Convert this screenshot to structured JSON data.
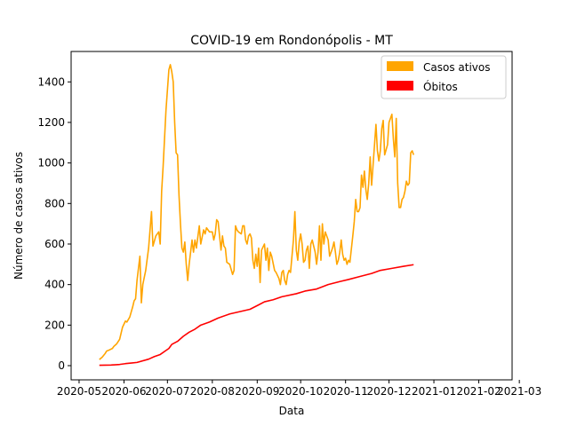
{
  "chart_data": {
    "type": "line",
    "title": "COVID-19 em Rondonópolis - MT",
    "xlabel": "Data",
    "ylabel": "Número de casos ativos",
    "x_ticks": [
      "2020-05",
      "2020-06",
      "2020-07",
      "2020-08",
      "2020-09",
      "2020-10",
      "2020-11",
      "2020-12",
      "2021-01",
      "2021-02",
      "2021-03"
    ],
    "y_ticks": [
      "0",
      "200",
      "400",
      "600",
      "800",
      "1000",
      "1200",
      "1400"
    ],
    "ylim": [
      -70,
      1550
    ],
    "xlim_days": [
      -5.5,
      299
    ],
    "legend": {
      "position": "top-right",
      "entries": [
        {
          "label": "Casos ativos",
          "color": "#ffa500"
        },
        {
          "label": "Óbitos",
          "color": "#ff0000"
        }
      ]
    },
    "x_start_date": "2020-05-01",
    "series": [
      {
        "name": "Casos ativos",
        "color": "#ffa500",
        "points": [
          [
            14,
            30
          ],
          [
            16,
            42
          ],
          [
            18,
            60
          ],
          [
            19,
            72
          ],
          [
            21,
            78
          ],
          [
            23,
            85
          ],
          [
            24,
            95
          ],
          [
            26,
            108
          ],
          [
            28,
            130
          ],
          [
            30,
            190
          ],
          [
            32,
            220
          ],
          [
            33,
            215
          ],
          [
            35,
            240
          ],
          [
            37,
            290
          ],
          [
            38,
            320
          ],
          [
            39,
            330
          ],
          [
            40,
            420
          ],
          [
            42,
            540
          ],
          [
            43,
            310
          ],
          [
            44,
            400
          ],
          [
            46,
            470
          ],
          [
            48,
            580
          ],
          [
            50,
            760
          ],
          [
            51,
            590
          ],
          [
            53,
            640
          ],
          [
            55,
            660
          ],
          [
            56,
            600
          ],
          [
            57,
            860
          ],
          [
            58,
            980
          ],
          [
            60,
            1260
          ],
          [
            62,
            1460
          ],
          [
            63,
            1485
          ],
          [
            64,
            1450
          ],
          [
            65,
            1400
          ],
          [
            66,
            1200
          ],
          [
            67,
            1050
          ],
          [
            68,
            1040
          ],
          [
            69,
            840
          ],
          [
            70,
            700
          ],
          [
            71,
            580
          ],
          [
            72,
            560
          ],
          [
            73,
            610
          ],
          [
            74,
            500
          ],
          [
            75,
            420
          ],
          [
            76,
            500
          ],
          [
            78,
            620
          ],
          [
            79,
            560
          ],
          [
            80,
            620
          ],
          [
            81,
            580
          ],
          [
            83,
            690
          ],
          [
            84,
            600
          ],
          [
            86,
            670
          ],
          [
            87,
            650
          ],
          [
            88,
            680
          ],
          [
            90,
            660
          ],
          [
            92,
            660
          ],
          [
            93,
            620
          ],
          [
            94,
            650
          ],
          [
            95,
            720
          ],
          [
            96,
            710
          ],
          [
            98,
            570
          ],
          [
            99,
            640
          ],
          [
            100,
            590
          ],
          [
            101,
            580
          ],
          [
            102,
            510
          ],
          [
            104,
            500
          ],
          [
            106,
            450
          ],
          [
            107,
            470
          ],
          [
            108,
            690
          ],
          [
            109,
            670
          ],
          [
            110,
            660
          ],
          [
            112,
            650
          ],
          [
            113,
            690
          ],
          [
            114,
            690
          ],
          [
            115,
            620
          ],
          [
            116,
            600
          ],
          [
            117,
            640
          ],
          [
            118,
            650
          ],
          [
            119,
            630
          ],
          [
            120,
            520
          ],
          [
            121,
            480
          ],
          [
            122,
            550
          ],
          [
            123,
            490
          ],
          [
            124,
            580
          ],
          [
            125,
            410
          ],
          [
            126,
            570
          ],
          [
            128,
            600
          ],
          [
            129,
            520
          ],
          [
            130,
            580
          ],
          [
            131,
            470
          ],
          [
            132,
            560
          ],
          [
            133,
            540
          ],
          [
            135,
            470
          ],
          [
            136,
            460
          ],
          [
            138,
            430
          ],
          [
            139,
            400
          ],
          [
            140,
            460
          ],
          [
            141,
            470
          ],
          [
            142,
            420
          ],
          [
            143,
            400
          ],
          [
            144,
            450
          ],
          [
            145,
            470
          ],
          [
            146,
            460
          ],
          [
            148,
            620
          ],
          [
            149,
            760
          ],
          [
            150,
            570
          ],
          [
            151,
            520
          ],
          [
            152,
            610
          ],
          [
            153,
            650
          ],
          [
            154,
            600
          ],
          [
            155,
            510
          ],
          [
            156,
            520
          ],
          [
            157,
            570
          ],
          [
            158,
            590
          ],
          [
            159,
            480
          ],
          [
            160,
            600
          ],
          [
            161,
            620
          ],
          [
            162,
            590
          ],
          [
            163,
            560
          ],
          [
            164,
            500
          ],
          [
            165,
            560
          ],
          [
            166,
            690
          ],
          [
            167,
            520
          ],
          [
            168,
            700
          ],
          [
            169,
            600
          ],
          [
            170,
            660
          ],
          [
            171,
            640
          ],
          [
            172,
            620
          ],
          [
            173,
            540
          ],
          [
            175,
            580
          ],
          [
            176,
            610
          ],
          [
            177,
            560
          ],
          [
            178,
            500
          ],
          [
            179,
            520
          ],
          [
            180,
            560
          ],
          [
            181,
            620
          ],
          [
            182,
            550
          ],
          [
            183,
            520
          ],
          [
            184,
            530
          ],
          [
            185,
            500
          ],
          [
            186,
            520
          ],
          [
            187,
            510
          ],
          [
            189,
            640
          ],
          [
            190,
            710
          ],
          [
            191,
            820
          ],
          [
            192,
            760
          ],
          [
            193,
            760
          ],
          [
            194,
            780
          ],
          [
            195,
            940
          ],
          [
            196,
            880
          ],
          [
            197,
            960
          ],
          [
            198,
            870
          ],
          [
            199,
            820
          ],
          [
            200,
            900
          ],
          [
            201,
            1030
          ],
          [
            202,
            890
          ],
          [
            203,
            990
          ],
          [
            204,
            1090
          ],
          [
            205,
            1190
          ],
          [
            206,
            1060
          ],
          [
            207,
            1010
          ],
          [
            208,
            1060
          ],
          [
            209,
            1170
          ],
          [
            210,
            1210
          ],
          [
            211,
            1040
          ],
          [
            213,
            1090
          ],
          [
            214,
            1200
          ],
          [
            215,
            1220
          ],
          [
            216,
            1240
          ],
          [
            217,
            1120
          ],
          [
            218,
            1030
          ],
          [
            219,
            1220
          ],
          [
            220,
            900
          ],
          [
            221,
            780
          ],
          [
            222,
            780
          ],
          [
            223,
            820
          ],
          [
            224,
            830
          ],
          [
            225,
            860
          ],
          [
            226,
            910
          ],
          [
            227,
            890
          ],
          [
            228,
            900
          ],
          [
            229,
            1050
          ],
          [
            230,
            1060
          ],
          [
            231,
            1040
          ]
        ]
      },
      {
        "name": "Óbitos",
        "color": "#ff0000",
        "points": [
          [
            14,
            2
          ],
          [
            22,
            3
          ],
          [
            28,
            6
          ],
          [
            32,
            10
          ],
          [
            36,
            13
          ],
          [
            40,
            16
          ],
          [
            48,
            32
          ],
          [
            52,
            45
          ],
          [
            56,
            55
          ],
          [
            60,
            75
          ],
          [
            62,
            85
          ],
          [
            64,
            105
          ],
          [
            68,
            120
          ],
          [
            72,
            145
          ],
          [
            76,
            165
          ],
          [
            80,
            180
          ],
          [
            84,
            200
          ],
          [
            90,
            215
          ],
          [
            96,
            235
          ],
          [
            104,
            255
          ],
          [
            110,
            265
          ],
          [
            118,
            278
          ],
          [
            124,
            300
          ],
          [
            128,
            315
          ],
          [
            134,
            325
          ],
          [
            140,
            340
          ],
          [
            150,
            355
          ],
          [
            156,
            368
          ],
          [
            164,
            378
          ],
          [
            172,
            400
          ],
          [
            180,
            415
          ],
          [
            186,
            425
          ],
          [
            194,
            440
          ],
          [
            202,
            455
          ],
          [
            208,
            470
          ],
          [
            216,
            480
          ],
          [
            224,
            490
          ],
          [
            231,
            498
          ]
        ]
      }
    ]
  }
}
